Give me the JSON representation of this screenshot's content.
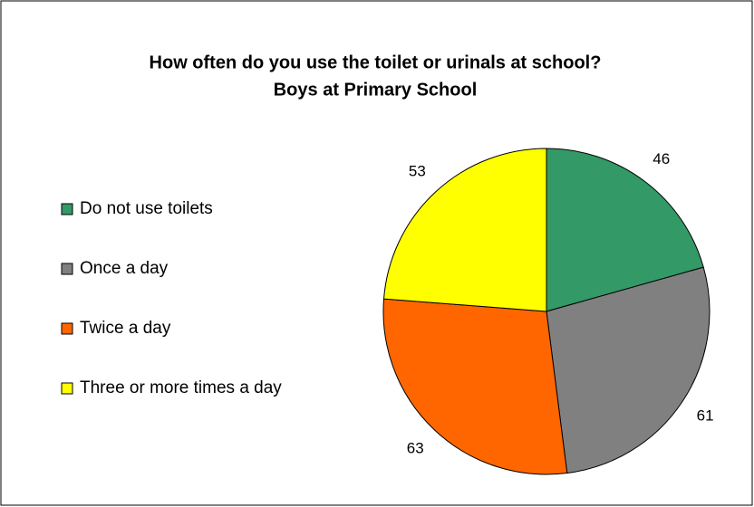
{
  "chart_data": {
    "type": "pie",
    "title": "How often do you use the toilet or urinals at school?",
    "subtitle": "Boys at Primary School",
    "categories": [
      "Do not use toilets",
      "Once a day",
      "Twice a day",
      "Three or more times a day"
    ],
    "values": [
      46,
      61,
      63,
      53
    ],
    "colors": [
      "#339966",
      "#808080",
      "#ff6600",
      "#ffff00"
    ],
    "legend": "left"
  }
}
